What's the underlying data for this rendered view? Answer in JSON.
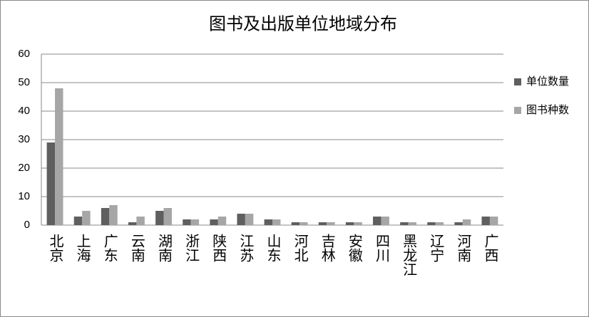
{
  "chart_data": {
    "type": "bar",
    "title": "图书及出版单位地域分布",
    "categories": [
      "北京",
      "上海",
      "广东",
      "云南",
      "湖南",
      "浙江",
      "陕西",
      "江苏",
      "山东",
      "河北",
      "吉林",
      "安徽",
      "四川",
      "黑龙江",
      "辽宁",
      "河南",
      "广西"
    ],
    "series": [
      {
        "name": "单位数量",
        "color": "#5f5f5f",
        "values": [
          29,
          3,
          6,
          1,
          5,
          2,
          2,
          4,
          2,
          1,
          1,
          1,
          3,
          1,
          1,
          1,
          3
        ]
      },
      {
        "name": "图书种数",
        "color": "#a6a6a6",
        "values": [
          48,
          5,
          7,
          3,
          6,
          2,
          3,
          4,
          2,
          1,
          1,
          1,
          3,
          1,
          1,
          2,
          3
        ]
      }
    ],
    "ylim": [
      0,
      60
    ],
    "yticks": [
      0,
      10,
      20,
      30,
      40,
      50,
      60
    ],
    "grid": true,
    "legend": "right"
  }
}
